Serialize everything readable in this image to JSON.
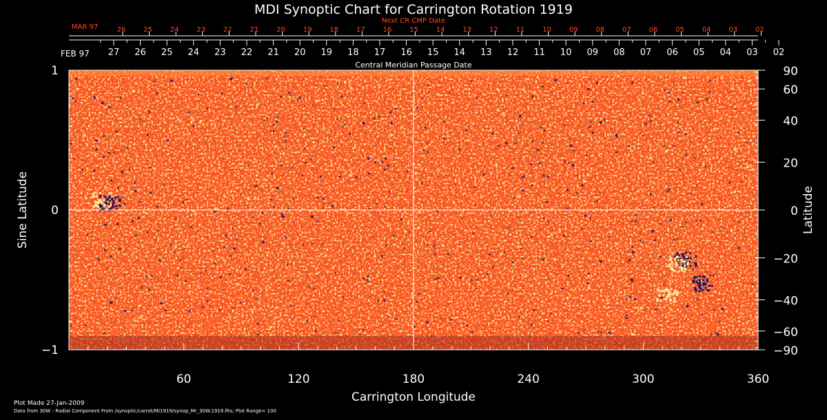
{
  "chart_data": {
    "type": "heatmap",
    "title": "MDI Synoptic Chart for Carrington Rotation 1919",
    "xlabel": "Carrington Longitude",
    "ylabel_left": "Sine Latitude",
    "ylabel_right": "Latitude",
    "top_axis_title": "Central Meridian Passage Date",
    "next_cr_title": "Next CR CMP Date",
    "x_range": [
      0,
      360
    ],
    "y_range": [
      -1,
      1
    ],
    "x_ticks": [
      60,
      120,
      180,
      240,
      300,
      360
    ],
    "y_left_ticks": [
      "1",
      "0",
      "−1"
    ],
    "y_left_tick_values": [
      1,
      0,
      -1
    ],
    "y_right_ticks": [
      {
        "lat": 90,
        "label": "90"
      },
      {
        "lat": 60,
        "label": "60"
      },
      {
        "lat": 40,
        "label": "40"
      },
      {
        "lat": 20,
        "label": "20"
      },
      {
        "lat": 0,
        "label": "0"
      },
      {
        "lat": -20,
        "label": "−20"
      },
      {
        "lat": -40,
        "label": "−40"
      },
      {
        "lat": -60,
        "label": "−60"
      },
      {
        "lat": -90,
        "label": "−90"
      }
    ],
    "cmp_month": "FEB 97",
    "cmp_dates": [
      "27",
      "26",
      "25",
      "24",
      "23",
      "22",
      "21",
      "20",
      "19",
      "18",
      "17",
      "16",
      "15",
      "14",
      "13",
      "12",
      "11",
      "10",
      "09",
      "08",
      "07",
      "06",
      "05",
      "04",
      "03",
      "02"
    ],
    "next_cr_month": "MAR 97",
    "next_cr_dates": [
      "26",
      "25",
      "24",
      "23",
      "22",
      "21",
      "20",
      "19",
      "18",
      "17",
      "16",
      "15",
      "14",
      "13",
      "12",
      "11",
      "10",
      "09",
      "08",
      "07",
      "06",
      "05",
      "04",
      "03",
      "02"
    ],
    "grid": {
      "equator": 0,
      "central_meridian": 180
    },
    "colors": {
      "background": "#000000",
      "field_base": "#ff5a1f",
      "positive": "#ffe9a0",
      "negative": "#1b1464",
      "next_cr": "#ff4a20",
      "axes": "#ffffff"
    },
    "plot_range": 100
  },
  "footer": {
    "plot_made": "Plot Made 27-Jan-2009",
    "data_source": "Data from 30W - Radial Component From /synoptic/carrot/M/1919/synop_Mr_30W.1919.fits; Plot Range=  100"
  }
}
